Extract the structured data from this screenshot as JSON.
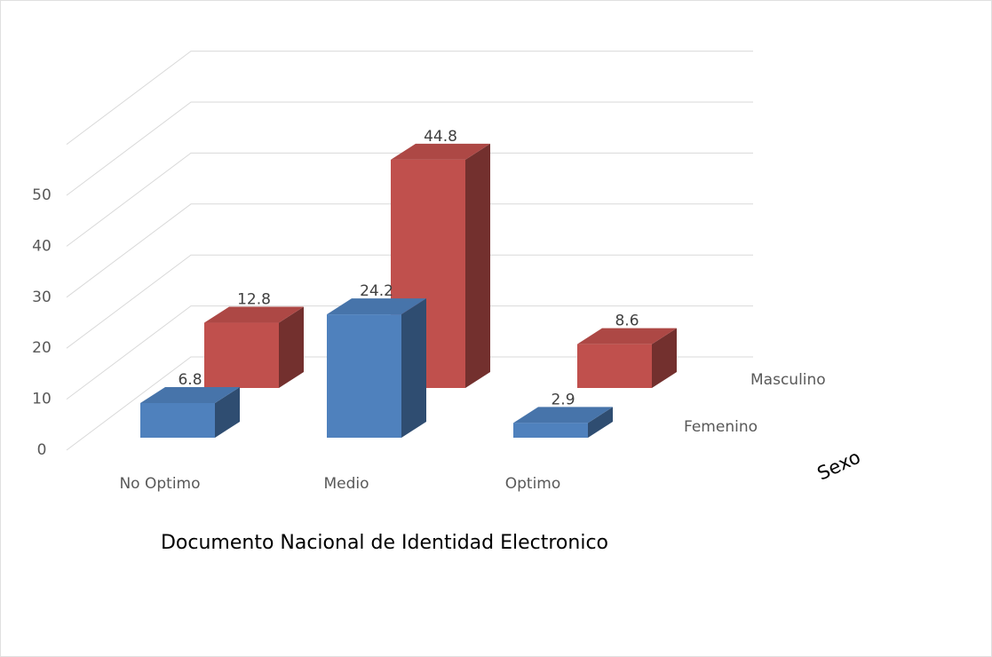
{
  "chart_data": {
    "type": "bar3d",
    "title": "Documento Nacional de Identidad Electronico",
    "depth_axis_label": "Sexo",
    "categories": [
      "No Optimo",
      "Medio",
      "Optimo"
    ],
    "series": [
      {
        "name": "Femenino",
        "color": "#4f81bd",
        "values": [
          6.8,
          24.2,
          2.9
        ]
      },
      {
        "name": "Masculino",
        "color": "#c0504d",
        "values": [
          12.8,
          44.8,
          8.6
        ]
      }
    ],
    "ylim": [
      0,
      60
    ],
    "yticks": [
      0,
      10,
      20,
      30,
      40,
      50
    ],
    "grid": true
  }
}
